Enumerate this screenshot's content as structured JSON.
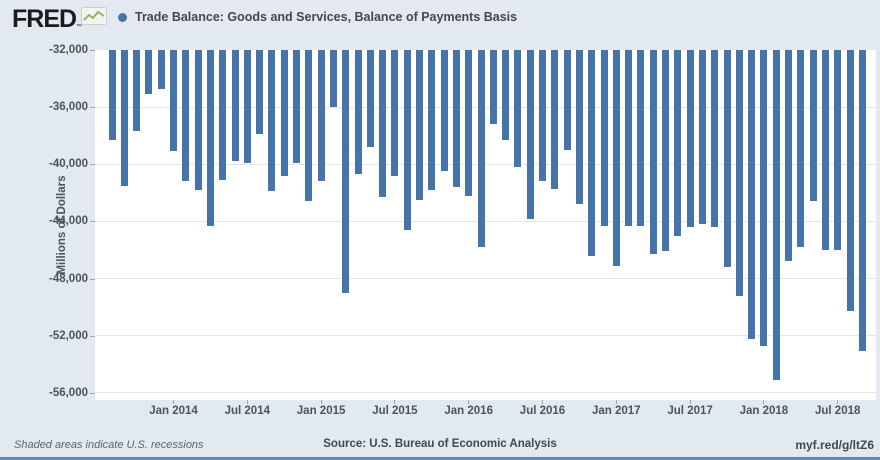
{
  "header": {
    "logo": "FRED",
    "logo_mark": "™",
    "series_label": "Trade Balance: Goods and Services, Balance of Payments Basis"
  },
  "footer": {
    "note": "Shaded areas indicate U.S. recessions",
    "source": "Source: U.S. Bureau of Economic Analysis",
    "link": "myf.red/g/ltZ6"
  },
  "colors": {
    "background": "#e3e9f0",
    "plot_background": "#ffffff",
    "bar": "#4673a8",
    "gridline": "#e6e6e6",
    "tick": "#9aa5af",
    "axis_text": "#4a545e",
    "legend_dot": "#4673a8",
    "accent_strip": "#5b87c2",
    "sparkline_green": "#8fae5f"
  },
  "chart_data": {
    "type": "bar",
    "title": "Trade Balance: Goods and Services, Balance of Payments Basis",
    "ylabel": "Millions of Dollars",
    "ylim": [
      -56500,
      -32000
    ],
    "grid": true,
    "legend_position": "top-left",
    "yticks": [
      -32000,
      -36000,
      -40000,
      -44000,
      -48000,
      -52000,
      -56000
    ],
    "ytick_labels": [
      "-32,000",
      "-36,000",
      "-40,000",
      "-44,000",
      "-48,000",
      "-52,000",
      "-56,000"
    ],
    "xticks": [
      {
        "label": "Jan 2014",
        "index": 5
      },
      {
        "label": "Jul 2014",
        "index": 11
      },
      {
        "label": "Jan 2015",
        "index": 17
      },
      {
        "label": "Jul 2015",
        "index": 23
      },
      {
        "label": "Jan 2016",
        "index": 29
      },
      {
        "label": "Jul 2016",
        "index": 35
      },
      {
        "label": "Jan 2017",
        "index": 41
      },
      {
        "label": "Jul 2017",
        "index": 47
      },
      {
        "label": "Jan 2018",
        "index": 53
      },
      {
        "label": "Jul 2018",
        "index": 59
      }
    ],
    "x": [
      "2013-08",
      "2013-09",
      "2013-10",
      "2013-11",
      "2013-12",
      "2014-01",
      "2014-02",
      "2014-03",
      "2014-04",
      "2014-05",
      "2014-06",
      "2014-07",
      "2014-08",
      "2014-09",
      "2014-10",
      "2014-11",
      "2014-12",
      "2015-01",
      "2015-02",
      "2015-03",
      "2015-04",
      "2015-05",
      "2015-06",
      "2015-07",
      "2015-08",
      "2015-09",
      "2015-10",
      "2015-11",
      "2015-12",
      "2016-01",
      "2016-02",
      "2016-03",
      "2016-04",
      "2016-05",
      "2016-06",
      "2016-07",
      "2016-08",
      "2016-09",
      "2016-10",
      "2016-11",
      "2016-12",
      "2017-01",
      "2017-02",
      "2017-03",
      "2017-04",
      "2017-05",
      "2017-06",
      "2017-07",
      "2017-08",
      "2017-09",
      "2017-10",
      "2017-11",
      "2017-12",
      "2018-01",
      "2018-02",
      "2018-03",
      "2018-04",
      "2018-05",
      "2018-06",
      "2018-07",
      "2018-08",
      "2018-09"
    ],
    "values": [
      -38300,
      -41500,
      -37700,
      -35100,
      -34700,
      -39100,
      -41200,
      -41800,
      -44300,
      -41100,
      -39800,
      -39900,
      -37900,
      -41900,
      -40800,
      -39900,
      -42600,
      -41200,
      -36000,
      -49000,
      -40700,
      -38800,
      -42300,
      -40800,
      -44600,
      -42500,
      -41800,
      -40500,
      -41600,
      -42200,
      -45800,
      -37200,
      -38300,
      -40200,
      -43800,
      -41200,
      -41700,
      -39000,
      -42800,
      -46400,
      -44300,
      -47100,
      -44300,
      -44300,
      -46300,
      -46100,
      -45000,
      -44400,
      -44200,
      -44400,
      -47200,
      -49200,
      -52200,
      -52700,
      -55100,
      -46800,
      -45800,
      -42600,
      -46000,
      -46000,
      -50300,
      -53100
    ]
  }
}
